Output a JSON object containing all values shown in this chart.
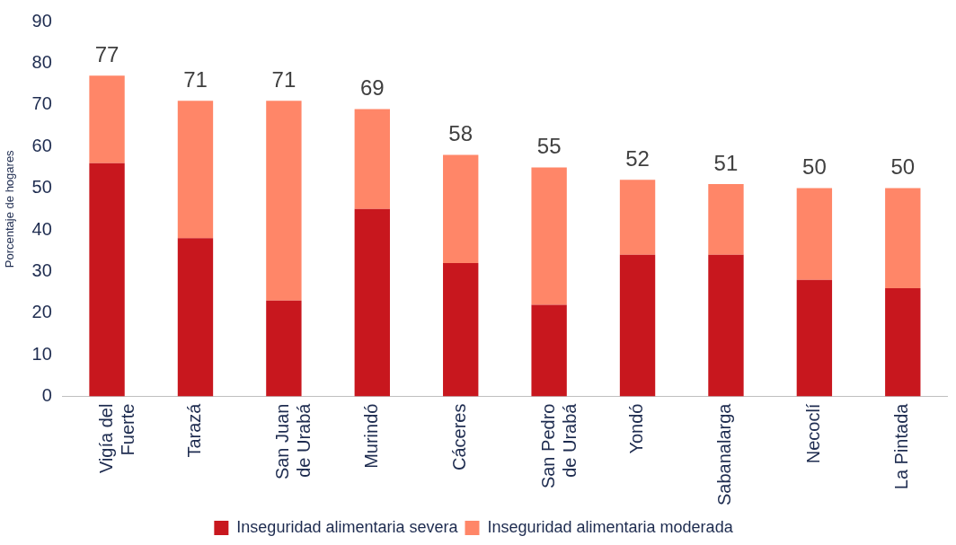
{
  "chart_data": {
    "type": "bar",
    "stacked": true,
    "ylabel": "Porcentaje de hogares",
    "categories": [
      "Vigía del Fuerte",
      "Tarazá",
      "San Juan de Urabá",
      "Murindó",
      "Cáceres",
      "San Pedro de Urabá",
      "Yondó",
      "Sabanalarga",
      "Necoclí",
      "La Pintada"
    ],
    "series": [
      {
        "name": "Inseguridad alimentaria severa",
        "color": "#c8171e",
        "values": [
          56,
          38,
          23,
          45,
          32,
          22,
          34,
          34,
          28,
          26
        ]
      },
      {
        "name": "Inseguridad alimentaria moderada",
        "color": "#ff8668",
        "values": [
          21,
          33,
          48,
          24,
          26,
          33,
          18,
          17,
          22,
          24
        ]
      }
    ],
    "totals": [
      "77",
      "71",
      "71",
      "69",
      "58",
      "55",
      "52",
      "51",
      "50",
      "50"
    ],
    "ylim": [
      0,
      90
    ],
    "yticks": [
      0,
      10,
      20,
      30,
      40,
      50,
      60,
      70,
      80,
      90
    ],
    "grid": false,
    "legend": "bottom"
  }
}
